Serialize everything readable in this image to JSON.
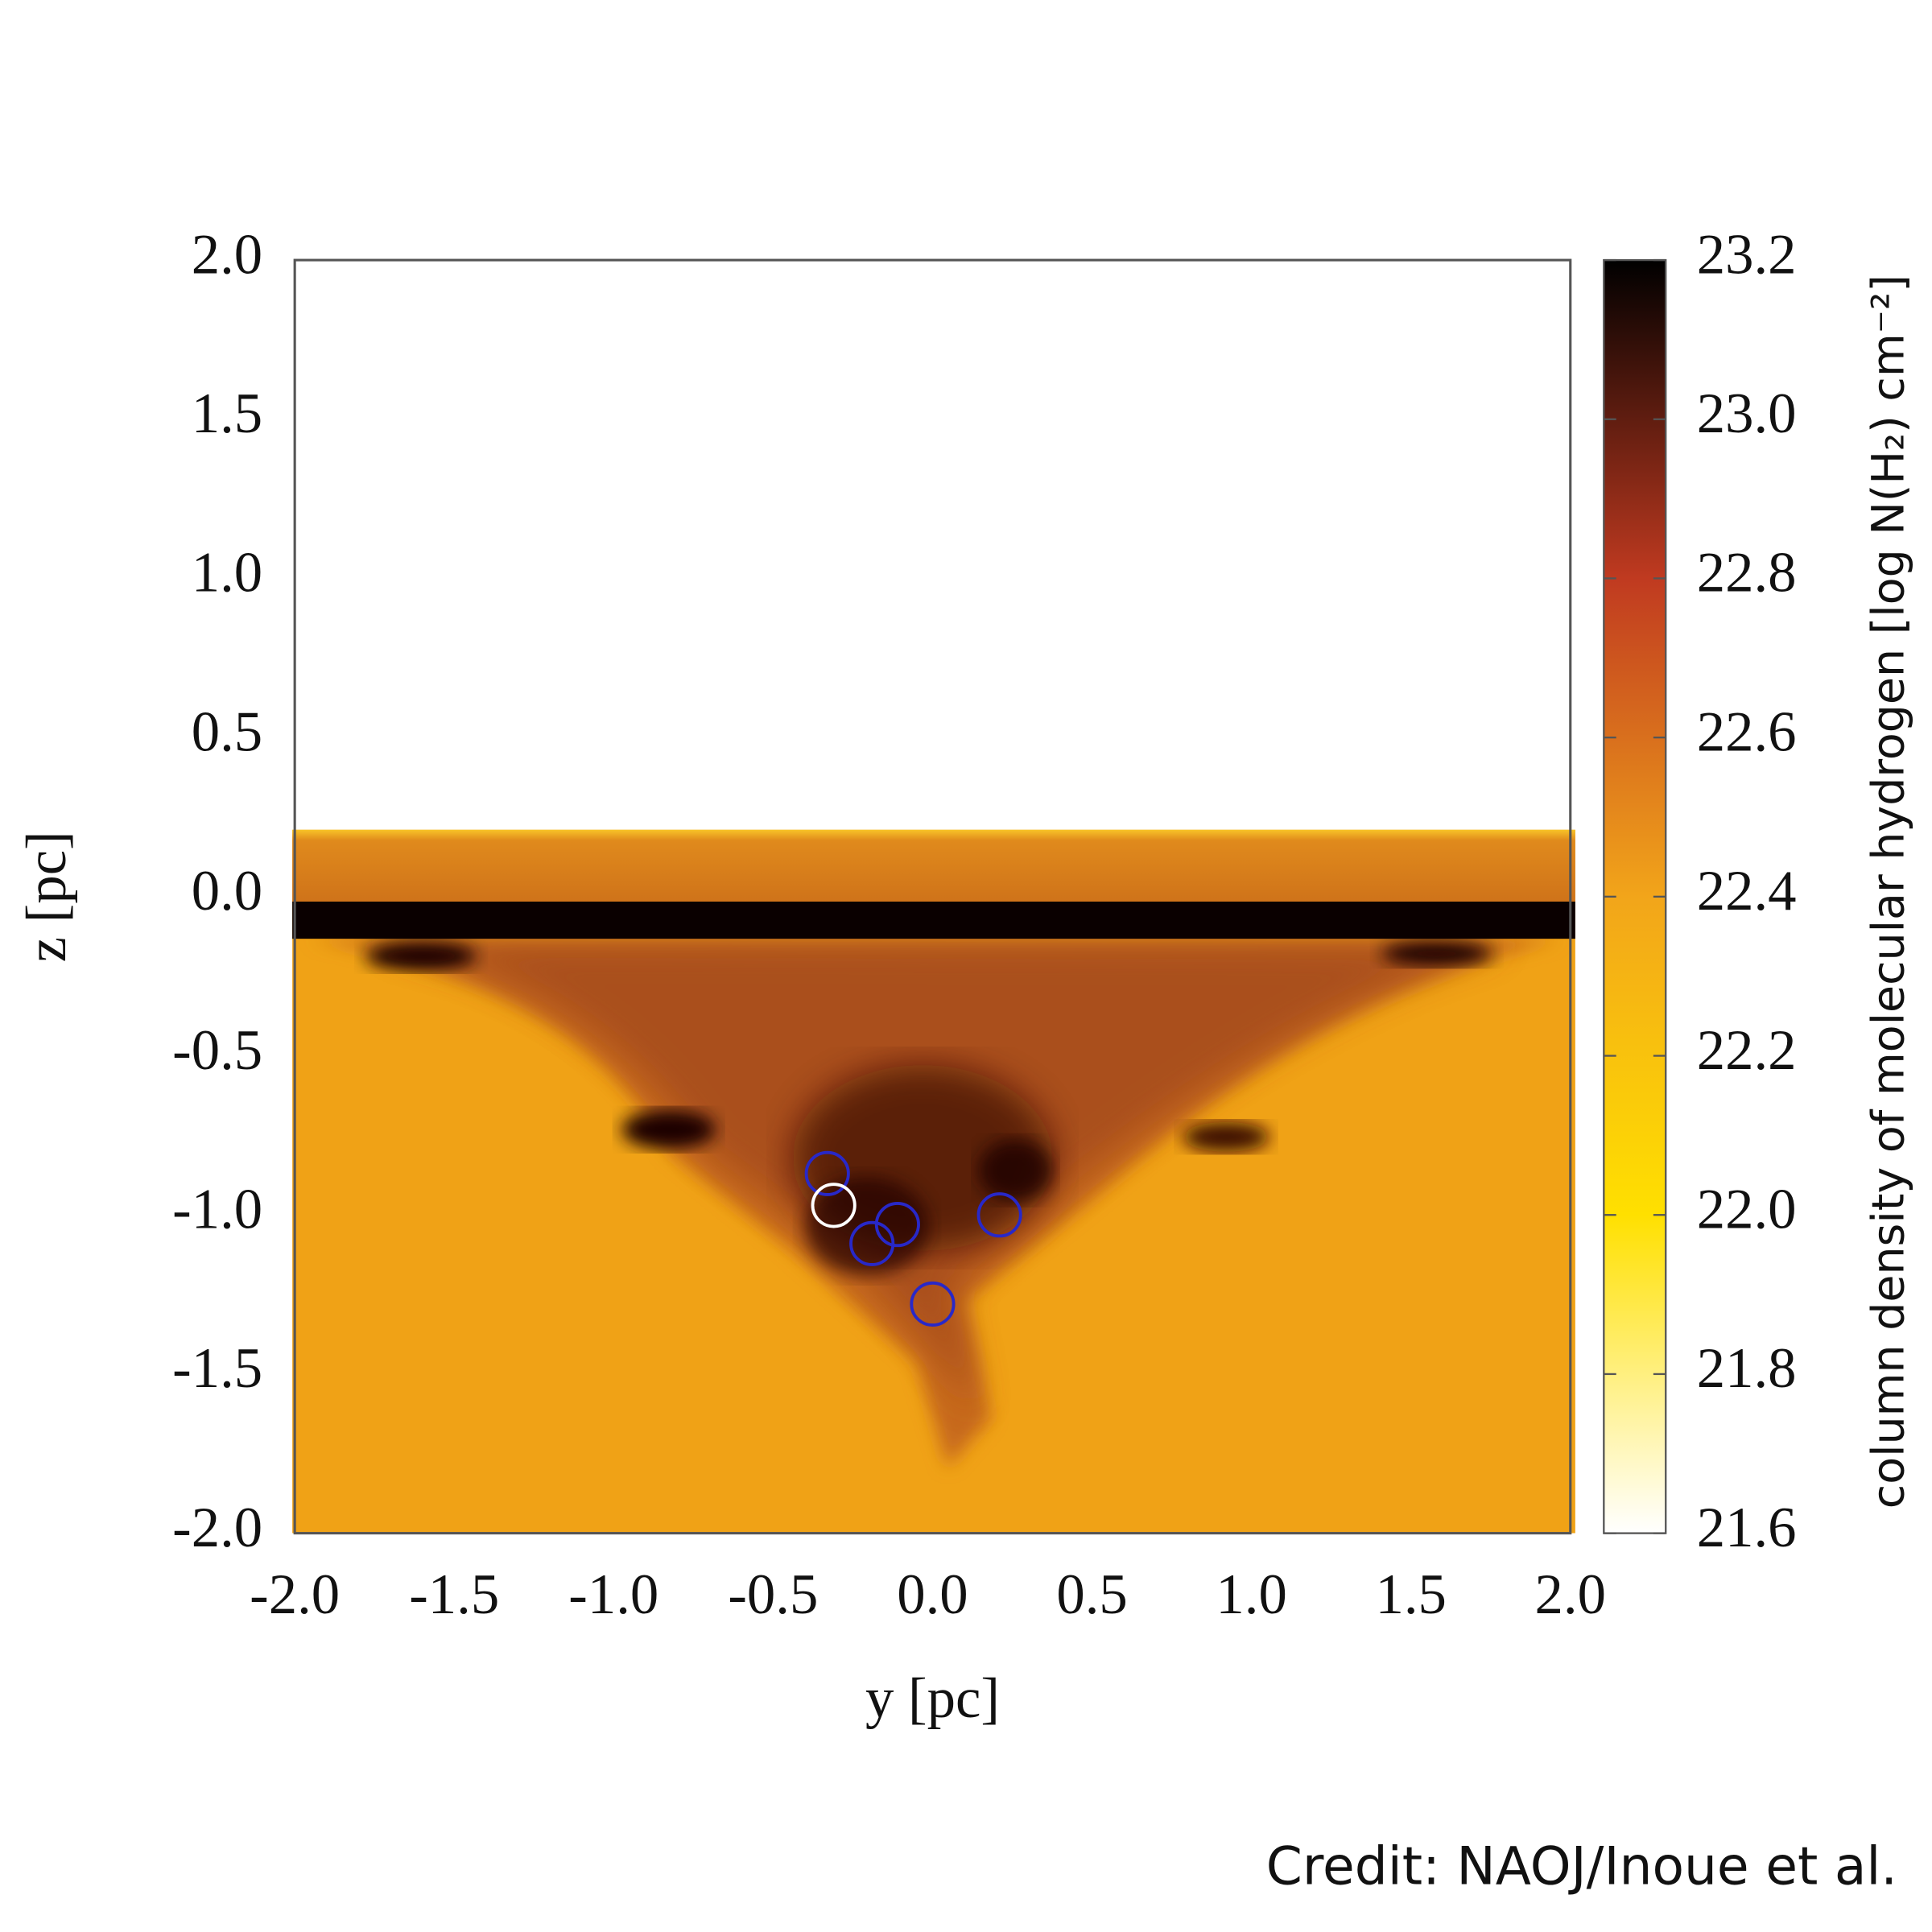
{
  "chart_data": {
    "type": "heatmap",
    "xlabel": "y [pc]",
    "ylabel": "z [pc]",
    "xlim": [
      -2,
      2
    ],
    "xticks": [
      {
        "value": -2,
        "label": "-2.0"
      },
      -1.5,
      {
        "value": -1,
        "label": "-1.0"
      },
      -0.5,
      {
        "value": 0,
        "label": "0.0"
      },
      0.5,
      {
        "value": 1,
        "label": "1.0"
      },
      1.5,
      {
        "value": 2,
        "label": "2.0"
      }
    ],
    "ylim": [
      -2,
      2
    ],
    "yticks": [
      {
        "value": -2,
        "label": "-2.0"
      },
      -1.5,
      {
        "value": -1,
        "label": "-1.0"
      },
      -0.5,
      {
        "value": 0,
        "label": "0.0"
      },
      0.5,
      {
        "value": 1,
        "label": "1.0"
      },
      1.5,
      {
        "value": 2,
        "label": "2.0"
      }
    ],
    "colorbar": {
      "label": "column density of molecular hydrogen [log N(H₂) cm⁻²]",
      "lim": [
        21.6,
        23.2
      ],
      "ticks": [
        21.6,
        21.8,
        {
          "value": 22,
          "label": "22.0"
        },
        22.2,
        22.4,
        22.6,
        22.8,
        {
          "value": 23,
          "label": "23.0"
        },
        23.2
      ],
      "colormap": [
        "#ffffff",
        "#ffe000",
        "#f2a51a",
        "#c03a20",
        "#000000"
      ]
    },
    "markers": {
      "color": "#2828c8",
      "x": [
        -0.33,
        -0.11,
        -0.19,
        0.21,
        0.0
      ],
      "y": [
        -0.87,
        -1.03,
        -1.09,
        -1.0,
        -1.28
      ]
    },
    "highlight": {
      "color": "#ffffff",
      "x": -0.31,
      "y": -0.97
    },
    "credit": "Credit: NAOJ/Inoue et al."
  }
}
